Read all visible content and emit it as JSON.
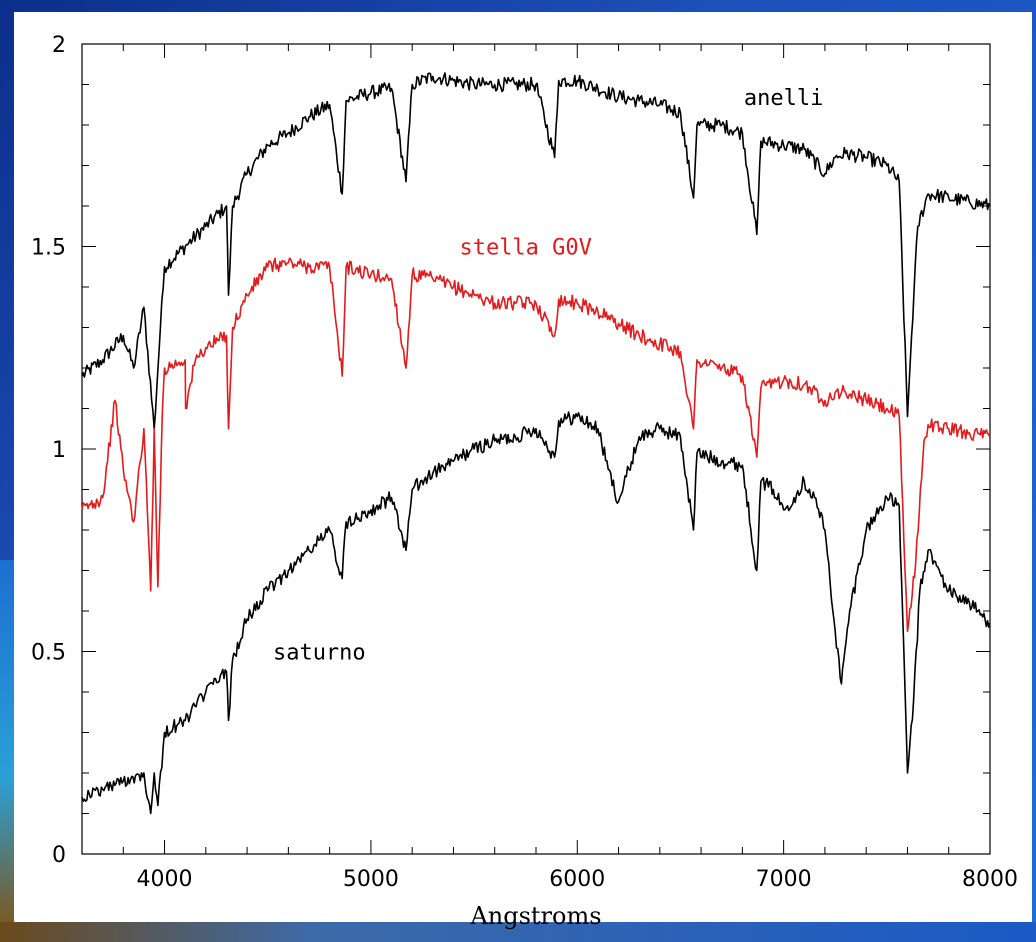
{
  "chart_data": {
    "type": "line",
    "title": "",
    "xlabel": "Angstroms",
    "ylabel": "",
    "xlim": [
      3600,
      8000
    ],
    "ylim": [
      0,
      2
    ],
    "x_ticks": [
      "4000",
      "5000",
      "6000",
      "7000",
      "8000"
    ],
    "y_ticks": [
      "0",
      "0.5",
      "1",
      "1.5",
      "2"
    ],
    "grid": false,
    "series": [
      {
        "name": "anelli",
        "color": "#000000",
        "points": [
          [
            3600,
            1.18
          ],
          [
            3700,
            1.22
          ],
          [
            3800,
            1.28
          ],
          [
            3850,
            1.2
          ],
          [
            3900,
            1.35
          ],
          [
            3950,
            1.05
          ],
          [
            3980,
            1.3
          ],
          [
            4000,
            1.45
          ],
          [
            4100,
            1.5
          ],
          [
            4200,
            1.55
          ],
          [
            4300,
            1.6
          ],
          [
            4310,
            1.38
          ],
          [
            4330,
            1.6
          ],
          [
            4400,
            1.68
          ],
          [
            4500,
            1.75
          ],
          [
            4600,
            1.78
          ],
          [
            4700,
            1.82
          ],
          [
            4800,
            1.85
          ],
          [
            4861,
            1.63
          ],
          [
            4880,
            1.86
          ],
          [
            5000,
            1.88
          ],
          [
            5100,
            1.89
          ],
          [
            5170,
            1.66
          ],
          [
            5200,
            1.9
          ],
          [
            5300,
            1.92
          ],
          [
            5400,
            1.91
          ],
          [
            5500,
            1.9
          ],
          [
            5600,
            1.9
          ],
          [
            5700,
            1.9
          ],
          [
            5800,
            1.9
          ],
          [
            5890,
            1.72
          ],
          [
            5910,
            1.91
          ],
          [
            6000,
            1.91
          ],
          [
            6100,
            1.89
          ],
          [
            6200,
            1.87
          ],
          [
            6300,
            1.86
          ],
          [
            6400,
            1.85
          ],
          [
            6500,
            1.83
          ],
          [
            6563,
            1.62
          ],
          [
            6580,
            1.8
          ],
          [
            6700,
            1.8
          ],
          [
            6800,
            1.78
          ],
          [
            6870,
            1.53
          ],
          [
            6890,
            1.76
          ],
          [
            7000,
            1.75
          ],
          [
            7100,
            1.74
          ],
          [
            7200,
            1.68
          ],
          [
            7250,
            1.72
          ],
          [
            7300,
            1.73
          ],
          [
            7400,
            1.72
          ],
          [
            7500,
            1.7
          ],
          [
            7560,
            1.66
          ],
          [
            7600,
            1.08
          ],
          [
            7620,
            1.28
          ],
          [
            7650,
            1.55
          ],
          [
            7700,
            1.63
          ],
          [
            7800,
            1.62
          ],
          [
            7900,
            1.61
          ],
          [
            8000,
            1.6
          ]
        ]
      },
      {
        "name": "stella G0V",
        "color": "#e41a1c",
        "points": [
          [
            3600,
            0.85
          ],
          [
            3700,
            0.88
          ],
          [
            3760,
            1.12
          ],
          [
            3800,
            0.95
          ],
          [
            3850,
            0.82
          ],
          [
            3900,
            1.05
          ],
          [
            3933,
            0.65
          ],
          [
            3950,
            1.05
          ],
          [
            3968,
            0.66
          ],
          [
            3990,
            1.1
          ],
          [
            4000,
            1.2
          ],
          [
            4100,
            1.22
          ],
          [
            4102,
            1.1
          ],
          [
            4150,
            1.22
          ],
          [
            4200,
            1.25
          ],
          [
            4300,
            1.28
          ],
          [
            4310,
            1.05
          ],
          [
            4330,
            1.3
          ],
          [
            4400,
            1.38
          ],
          [
            4500,
            1.45
          ],
          [
            4600,
            1.46
          ],
          [
            4700,
            1.45
          ],
          [
            4800,
            1.45
          ],
          [
            4861,
            1.18
          ],
          [
            4880,
            1.45
          ],
          [
            5000,
            1.43
          ],
          [
            5100,
            1.42
          ],
          [
            5170,
            1.2
          ],
          [
            5200,
            1.43
          ],
          [
            5300,
            1.42
          ],
          [
            5400,
            1.4
          ],
          [
            5500,
            1.38
          ],
          [
            5600,
            1.36
          ],
          [
            5700,
            1.36
          ],
          [
            5800,
            1.36
          ],
          [
            5890,
            1.28
          ],
          [
            5910,
            1.37
          ],
          [
            6000,
            1.36
          ],
          [
            6100,
            1.34
          ],
          [
            6200,
            1.31
          ],
          [
            6300,
            1.28
          ],
          [
            6400,
            1.26
          ],
          [
            6500,
            1.24
          ],
          [
            6563,
            1.05
          ],
          [
            6580,
            1.22
          ],
          [
            6700,
            1.2
          ],
          [
            6800,
            1.18
          ],
          [
            6870,
            0.98
          ],
          [
            6890,
            1.15
          ],
          [
            7000,
            1.17
          ],
          [
            7100,
            1.16
          ],
          [
            7200,
            1.12
          ],
          [
            7250,
            1.14
          ],
          [
            7300,
            1.14
          ],
          [
            7400,
            1.12
          ],
          [
            7500,
            1.1
          ],
          [
            7560,
            1.08
          ],
          [
            7600,
            0.55
          ],
          [
            7640,
            0.72
          ],
          [
            7680,
            1.02
          ],
          [
            7700,
            1.06
          ],
          [
            7800,
            1.05
          ],
          [
            7900,
            1.04
          ],
          [
            8000,
            1.03
          ]
        ]
      },
      {
        "name": "saturno",
        "color": "#000000",
        "points": [
          [
            3600,
            0.14
          ],
          [
            3700,
            0.16
          ],
          [
            3800,
            0.18
          ],
          [
            3900,
            0.2
          ],
          [
            3933,
            0.1
          ],
          [
            3950,
            0.2
          ],
          [
            3968,
            0.12
          ],
          [
            4000,
            0.3
          ],
          [
            4100,
            0.33
          ],
          [
            4200,
            0.4
          ],
          [
            4300,
            0.45
          ],
          [
            4310,
            0.33
          ],
          [
            4330,
            0.48
          ],
          [
            4400,
            0.58
          ],
          [
            4500,
            0.65
          ],
          [
            4600,
            0.7
          ],
          [
            4700,
            0.75
          ],
          [
            4800,
            0.8
          ],
          [
            4861,
            0.68
          ],
          [
            4880,
            0.82
          ],
          [
            5000,
            0.85
          ],
          [
            5100,
            0.88
          ],
          [
            5170,
            0.75
          ],
          [
            5200,
            0.9
          ],
          [
            5300,
            0.94
          ],
          [
            5400,
            0.97
          ],
          [
            5500,
            1.0
          ],
          [
            5600,
            1.02
          ],
          [
            5700,
            1.03
          ],
          [
            5800,
            1.05
          ],
          [
            5890,
            0.98
          ],
          [
            5910,
            1.07
          ],
          [
            6000,
            1.08
          ],
          [
            6100,
            1.05
          ],
          [
            6150,
            0.95
          ],
          [
            6200,
            0.87
          ],
          [
            6250,
            0.95
          ],
          [
            6300,
            1.03
          ],
          [
            6400,
            1.05
          ],
          [
            6500,
            1.03
          ],
          [
            6563,
            0.8
          ],
          [
            6580,
            0.99
          ],
          [
            6700,
            0.97
          ],
          [
            6800,
            0.96
          ],
          [
            6870,
            0.7
          ],
          [
            6890,
            0.92
          ],
          [
            6950,
            0.9
          ],
          [
            7000,
            0.85
          ],
          [
            7050,
            0.88
          ],
          [
            7100,
            0.92
          ],
          [
            7150,
            0.88
          ],
          [
            7200,
            0.8
          ],
          [
            7250,
            0.55
          ],
          [
            7280,
            0.42
          ],
          [
            7320,
            0.6
          ],
          [
            7400,
            0.8
          ],
          [
            7500,
            0.88
          ],
          [
            7560,
            0.86
          ],
          [
            7600,
            0.2
          ],
          [
            7630,
            0.38
          ],
          [
            7660,
            0.65
          ],
          [
            7700,
            0.75
          ],
          [
            7800,
            0.65
          ],
          [
            7900,
            0.62
          ],
          [
            8000,
            0.57
          ]
        ]
      }
    ],
    "annotations": [
      {
        "text": "anelli",
        "x": 7000,
        "y": 1.85,
        "color": "#000000"
      },
      {
        "text": "stella G0V",
        "x": 5750,
        "y": 1.48,
        "color": "#e41a1c"
      },
      {
        "text": "saturno",
        "x": 4750,
        "y": 0.48,
        "color": "#000000"
      }
    ]
  }
}
